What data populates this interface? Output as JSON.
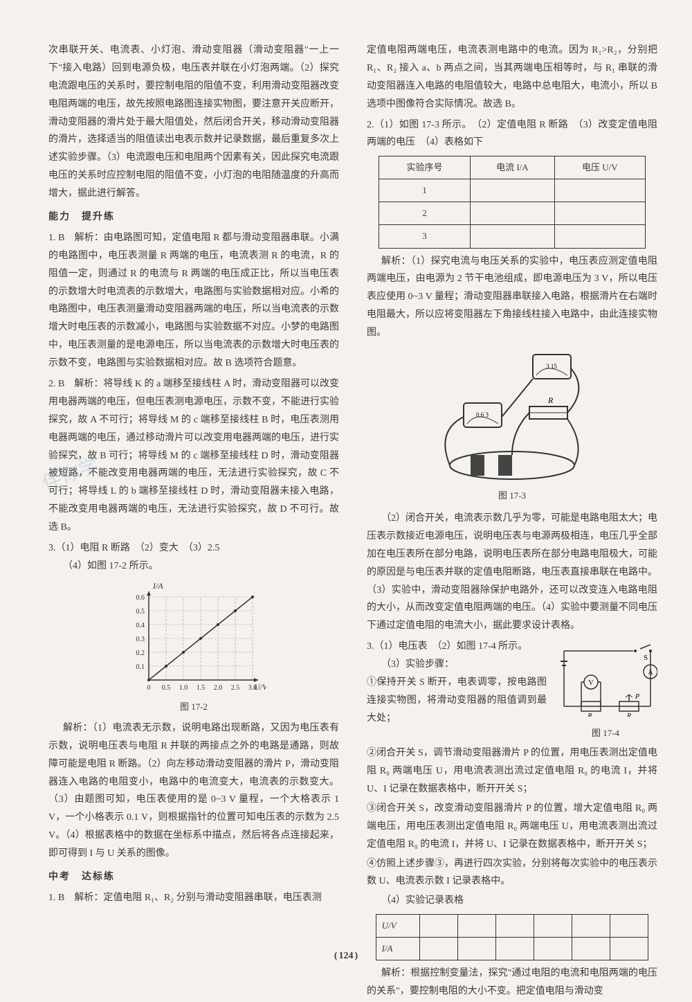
{
  "page_number": "124",
  "watermark": "伴你学",
  "left": {
    "intro_paras": [
      "次串联开关、电流表、小灯泡、滑动变阻器（滑动变阻器\"一上一下\"接入电路）回到电源负极，电压表并联在小灯泡两端。（2）探究电流跟电压的关系时，要控制电阻的阻值不变，利用滑动变阻器改变电阻两端的电压，故先按照电路图连接实物图，要注意开关应断开，滑动变阻器的滑片处于最大阻值处，然后闭合开关，移动滑动变阻器的滑片，选择适当的阻值读出电表示数并记录数据，最后重复多次上述实验步骤。（3）电流跟电压和电阻两个因素有关，因此探究电流跟电压的关系时应控制电阻的阻值不变，小灯泡的电阻随温度的升高而增大，据此进行解答。"
    ],
    "sec1_title": "能力　提升练",
    "q1": "1. B　解析：由电路图可知，定值电阻 R 都与滑动变阻器串联。小满的电路图中，电压表测量 R 两端的电压，电流表测 R 的电流，R 的阻值一定，则通过 R 的电流与 R 两端的电压成正比，所以当电压表的示数增大时电流表的示数增大，电路图与实验数据相对应。小希的电路图中，电压表测量滑动变阻器两端的电压，所以当电流表的示数增大时电压表的示数减小，电路图与实验数据不对应。小梦的电路图中，电压表测量的是电源电压，所以当电流表的示数增大时电压表的示数不变，电路图与实验数据相对应。故 B 选项符合题意。",
    "q2": "2. B　解析：将导线 K 的 a 端移至接线柱 A 时，滑动变阻器可以改变用电器两端的电压，但电压表测电源电压，示数不变，不能进行实验探究，故 A 不可行；将导线 M 的 c 端移至接线柱 B 时，电压表测用电器两端的电压，通过移动滑片可以改变用电器两端的电压，进行实验探究，故 B 可行；将导线 M 的 c 端移至接线柱 D 时，滑动变阻器被短路，不能改变用电器两端的电压，无法进行实验探究，故 C 不可行；将导线 L 的 b 端移至接线柱 D 时，滑动变阻器未接入电路，不能改变用电器两端的电压，无法进行实验探究，故 D 不可行。故选 B。",
    "q3_head": "3.（1）电阻 R 断路　（2）变大　（3）2.5",
    "q3_sub": "（4）如图 17-2 所示。",
    "chart172": {
      "label": "图 17-2",
      "ylabel": "I/A",
      "xlabel": "U/V",
      "yticks": [
        "0.1",
        "0.2",
        "0.3",
        "0.4",
        "0.5",
        "0.6"
      ],
      "xticks": [
        "0",
        "0.5",
        "1.0",
        "1.5",
        "2.0",
        "2.5",
        "3.0"
      ],
      "axis_color": "#333333",
      "grid_color": "#999999",
      "line_color": "#333333",
      "points": [
        [
          0,
          0
        ],
        [
          0.5,
          0.1
        ],
        [
          1.0,
          0.2
        ],
        [
          1.5,
          0.3
        ],
        [
          2.0,
          0.4
        ],
        [
          2.5,
          0.5
        ],
        [
          3.0,
          0.6
        ]
      ]
    },
    "q3_explain": "解析：（1）电流表无示数，说明电路出现断路，又因为电压表有示数，说明电压表与电阻 R 并联的两接点之外的电路是通路，则故障可能是电阻 R 断路。（2）向左移动滑动变阻器的滑片 P，滑动变阻器连入电路的电阻变小，电路中的电流变大，电流表的示数变大。（3）由题图可知，电压表使用的是 0~3 V 量程，一个大格表示 1 V，一个小格表示 0.1 V，则根据指针的位置可知电压表的示数为 2.5 V。（4）根据表格中的数据在坐标系中描点，然后将各点连接起来，即可得到 I 与 U 关系的图像。",
    "sec2_title": "中考　达标练",
    "zk_q1": "1. B　解析：定值电阻 R₁、R₂ 分别与滑动变阻器串联，电压表测"
  },
  "right": {
    "cont1": "定值电阻两端电压，电流表测电路中的电流。因为 R₁>R₂，分别把 R₁、R₂ 接入 a、b 两点之间，当其两端电压相等时，与 R₁ 串联的滑动变阻器连入电路的电阻值较大，电路中总电阻大，电流小，所以 B 选项中图像符合实际情况。故选 B。",
    "q2_head": "2.（1）如图 17-3 所示。　（2）定值电阻 R 断路　（3）改变定值电阻两端的电压　（4）表格如下",
    "table1": {
      "headers": [
        "实验序号",
        "电流 I/A",
        "电压 U/V"
      ],
      "rows": [
        [
          "1",
          "",
          ""
        ],
        [
          "2",
          "",
          ""
        ],
        [
          "3",
          "",
          ""
        ]
      ]
    },
    "q2_explain1": "解析：（1）探究电流与电压关系的实验中，电压表应测定值电阻两端电压，由电源为 2 节干电池组成，即电源电压为 3 V，所以电压表应使用 0~3 V 量程；滑动变阻器串联接入电路，根据滑片在右端时电阻最大，所以应将变阻器左下角接线柱接入电路中，由此连接实物图。",
    "fig173_label": "图 17-3",
    "q2_explain2": "（2）闭合开关，电流表示数几乎为零，可能是电路电阻太大；电压表示数接近电源电压，说明电压表与电源两极相连，电压几乎全部加在电压表所在部分电路，说明电压表所在部分电路电阻极大，可能的原因是与电压表并联的定值电阻断路，电压表直接串联在电路中。（3）实验中，滑动变阻器除保护电路外，还可以改变连入电路电阻的大小，从而改变定值电阻两端的电压。（4）实验中要测量不同电压下通过定值电阻的电流大小，据此要求设计表格。",
    "q3_head": "3.（1）电压表　（2）如图 17-4 所示。",
    "q3_sub1": "（3）实验步骤：",
    "q3_step1": "①保持开关 S 断开，电表调零，按电路图连接实物图，将滑动变阻器的阻值调到最大处；",
    "fig174_label": "图 17-4",
    "q3_step2": "②闭合开关 S，调节滑动变阻器滑片 P 的位置，用电压表测出定值电阻 R₀ 两端电压 U，用电流表测出流过定值电阻 R₀ 的电流 I，并将 U、I 记录在数据表格中，断开开关 S；",
    "q3_step3": "③闭合开关 S，改变滑动变阻器滑片 P 的位置，增大定值电阻 R₀ 两端电压，用电压表测出定值电阻 R₀ 两端电压 U，用电流表测出流过定值电阻 R₀ 的电流 I，并将 U、I 记录在数据表格中，断开开关 S；",
    "q3_step4": "④仿照上述步骤③，再进行四次实验，分别将每次实验中的电压表示数 U、电流表示数 I 记录表格中。",
    "q3_sub4": "（4）实验记录表格",
    "table2": {
      "r1": "U/V",
      "r2": "I/A"
    },
    "q3_explain": "解析：根据控制变量法，探究\"通过电阻的电流和电阻两端的电压的关系\"，要控制电阻的大小不变。把定值电阻与滑动变"
  }
}
